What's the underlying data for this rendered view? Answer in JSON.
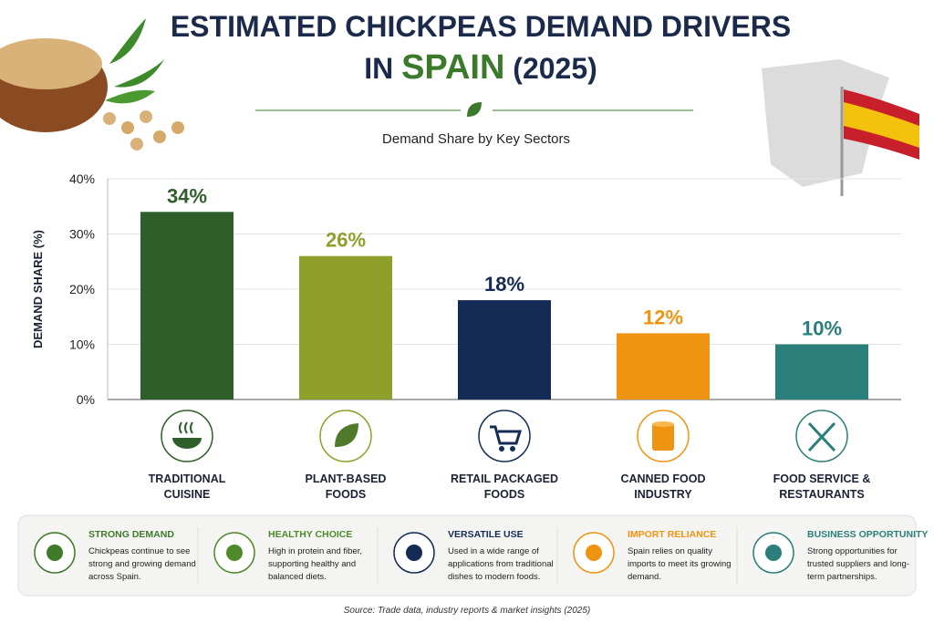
{
  "header": {
    "title_line1": "ESTIMATED CHICKPEAS DEMAND DRIVERS",
    "title_prefix": "IN",
    "title_highlight": "SPAIN",
    "title_suffix": "(2025)"
  },
  "chart_data": {
    "type": "bar",
    "subtitle": "Demand Share by Key Sectors",
    "ylabel": "DEMAND SHARE (%)",
    "categories": [
      "TRADITIONAL CUISINE",
      "PLANT-BASED FOODS",
      "RETAIL PACKAGED FOODS",
      "CANNED FOOD INDUSTRY",
      "FOOD SERVICE & RESTAURANTS"
    ],
    "values": [
      34,
      26,
      18,
      12,
      10
    ],
    "value_labels": [
      "34%",
      "26%",
      "18%",
      "12%",
      "10%"
    ],
    "colors": [
      "#2f5e2a",
      "#8fa02a",
      "#142c55",
      "#ef9411",
      "#2a7f7a"
    ],
    "ylim": [
      0,
      40
    ],
    "yticks": [
      {
        "value": 0,
        "label": "0%"
      },
      {
        "value": 10,
        "label": "10%"
      },
      {
        "value": 20,
        "label": "20%"
      },
      {
        "value": 30,
        "label": "30%"
      },
      {
        "value": 40,
        "label": "40%"
      }
    ],
    "grid": true
  },
  "cards": [
    {
      "title": "STRONG DEMAND",
      "text": "Chickpeas continue to see strong and growing demand across Spain.",
      "color": "#3f7a2a"
    },
    {
      "title": "HEALTHY CHOICE",
      "text": "High in protein and fiber, supporting healthy and balanced diets.",
      "color": "#4f8a2a"
    },
    {
      "title": "VERSATILE USE",
      "text": "Used in a wide range of applications from traditional dishes to modern foods.",
      "color": "#142c55"
    },
    {
      "title": "IMPORT RELIANCE",
      "text": "Spain relies on quality imports to meet its growing demand.",
      "color": "#ef9411"
    },
    {
      "title": "BUSINESS OPPORTUNITY",
      "text": "Strong opportunities for trusted suppliers and long-term partnerships.",
      "color": "#2a7f7a"
    }
  ],
  "footer": {
    "source": "Source: Trade data, industry reports & market insights (2025)"
  }
}
